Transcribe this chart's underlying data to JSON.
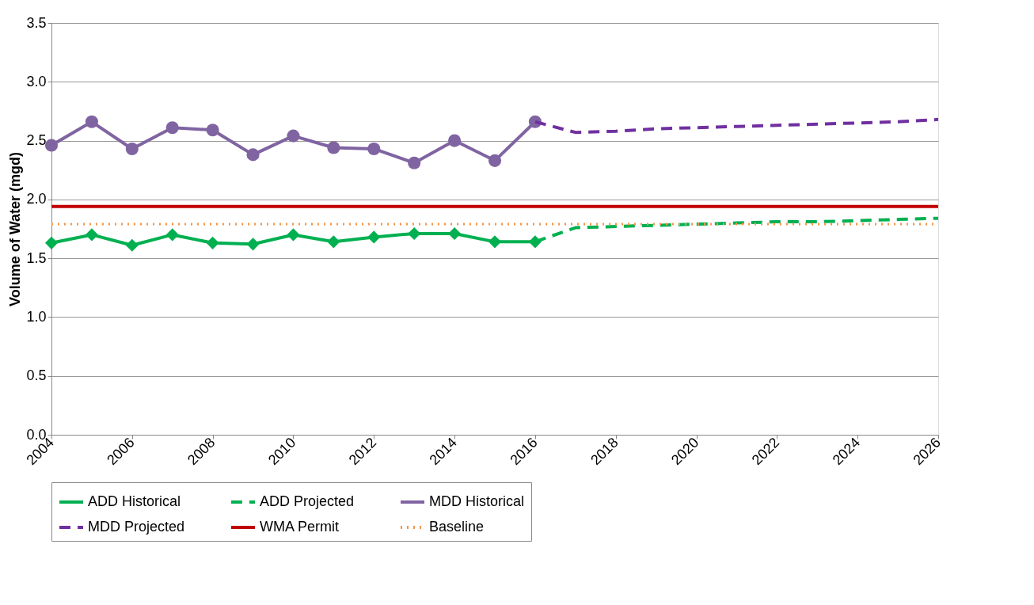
{
  "chart_data": {
    "type": "line",
    "ylabel": "Volume of Water (mgd)",
    "xlim": [
      2004,
      2026
    ],
    "xticks": [
      2004,
      2006,
      2008,
      2010,
      2012,
      2014,
      2016,
      2018,
      2020,
      2022,
      2024,
      2026
    ],
    "ylim": [
      0,
      3.5
    ],
    "yticks": [
      {
        "value": 0,
        "label": "0.0"
      },
      0.5,
      {
        "value": 1,
        "label": "1.0"
      },
      1.5,
      {
        "value": 2,
        "label": "2.0"
      },
      2.5,
      {
        "value": 3,
        "label": "3.0"
      },
      3.5
    ],
    "grid": "y",
    "legend": "bottom",
    "series": [
      {
        "name": "ADD Historical",
        "color": "#00b050",
        "marker": "diamond",
        "line_style": "solid",
        "x": [
          2004,
          2005,
          2006,
          2007,
          2008,
          2009,
          2010,
          2011,
          2012,
          2013,
          2014,
          2015,
          2016
        ],
        "values": [
          1.63,
          1.7,
          1.61,
          1.7,
          1.63,
          1.62,
          1.7,
          1.64,
          1.68,
          1.71,
          1.71,
          1.64,
          1.64
        ]
      },
      {
        "name": "ADD Projected",
        "color": "#00b050",
        "marker": "none",
        "line_style": "dashed",
        "x": [
          2016,
          2017,
          2018,
          2019,
          2020,
          2021,
          2022,
          2023,
          2024,
          2025,
          2026
        ],
        "values": [
          1.64,
          1.76,
          1.77,
          1.78,
          1.79,
          1.8,
          1.81,
          1.81,
          1.82,
          1.83,
          1.84
        ]
      },
      {
        "name": "MDD Historical",
        "color": "#8064a2",
        "marker": "circle",
        "line_style": "solid",
        "x": [
          2004,
          2005,
          2006,
          2007,
          2008,
          2009,
          2010,
          2011,
          2012,
          2013,
          2014,
          2015,
          2016
        ],
        "values": [
          2.46,
          2.66,
          2.43,
          2.61,
          2.59,
          2.38,
          2.54,
          2.44,
          2.43,
          2.31,
          2.5,
          2.33,
          2.66
        ]
      },
      {
        "name": "MDD Projected",
        "color": "#7030a0",
        "marker": "none",
        "line_style": "dashed",
        "x": [
          2016,
          2017,
          2018,
          2019,
          2020,
          2021,
          2022,
          2023,
          2024,
          2025,
          2026
        ],
        "values": [
          2.66,
          2.57,
          2.58,
          2.6,
          2.61,
          2.62,
          2.63,
          2.64,
          2.65,
          2.66,
          2.68
        ]
      },
      {
        "name": "WMA Permit",
        "color": "#c00000",
        "marker": "none",
        "line_style": "solid",
        "x": [
          2004,
          2026
        ],
        "values": [
          1.94,
          1.94
        ]
      },
      {
        "name": "Baseline",
        "color": "#f79646",
        "marker": "none",
        "line_style": "dotted",
        "x": [
          2004,
          2026
        ],
        "values": [
          1.79,
          1.79
        ]
      }
    ]
  }
}
